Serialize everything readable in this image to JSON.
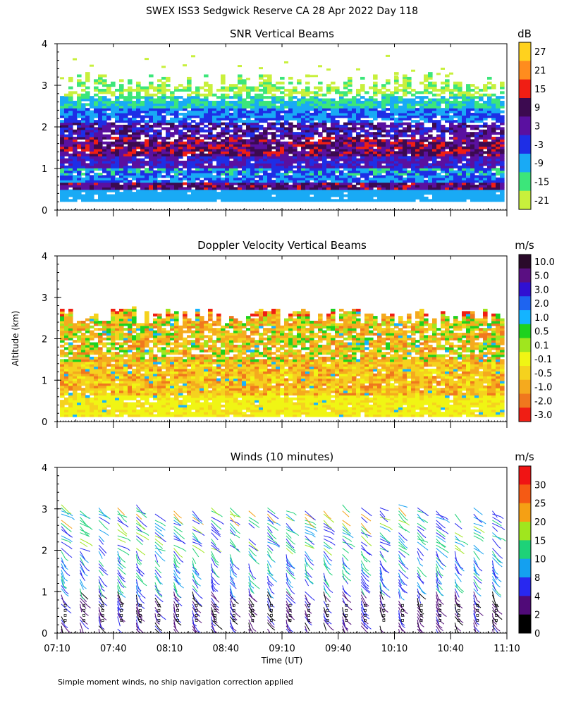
{
  "figure": {
    "title": "SWEX ISS3 Sedgwick Reserve CA  28 Apr 2022 Day 118",
    "shared_ylabel": "Altitude (km)",
    "xlabel": "Time (UT)",
    "footnote": "Simple moment winds, no ship navigation correction applied",
    "x_ticks": [
      "07:10",
      "07:40",
      "08:10",
      "08:40",
      "09:10",
      "09:40",
      "10:10",
      "10:40",
      "11:10"
    ]
  },
  "chart_data": [
    {
      "type": "heatmap",
      "title": "SNR Vertical Beams",
      "ylabel": "Altitude (km)",
      "xlabel": "Time (UT)",
      "xlim": [
        "07:10",
        "11:10"
      ],
      "ylim": [
        0,
        4
      ],
      "y_ticks": [
        0,
        1,
        2,
        3,
        4
      ],
      "colorbar": {
        "unit": "dB",
        "labels": [
          "27",
          "21",
          "15",
          "9",
          "3",
          "-3",
          "-9",
          "-15",
          "-21"
        ],
        "colors": [
          "#ffd21e",
          "#ff8c1e",
          "#f01e14",
          "#3c0a50",
          "#5a10a0",
          "#1e2ee6",
          "#19aaf5",
          "#3ce67a",
          "#c8f03c"
        ]
      },
      "field_description_levels": {
        "0.2-0.5 km": "-9 to -3",
        "0.5-0.7 km": "-3 to 15",
        "0.7-1.3 km": "-9 to 3",
        "1.3-1.7 km": "3 to 15",
        "1.7-2.3 km": "-3 to 9",
        "2.3-3.2 km": "-21 to -9"
      }
    },
    {
      "type": "heatmap",
      "title": "Doppler Velocity Vertical Beams",
      "ylabel": "Altitude (km)",
      "xlabel": "Time (UT)",
      "xlim": [
        "07:10",
        "11:10"
      ],
      "ylim": [
        0,
        4
      ],
      "y_ticks": [
        0,
        1,
        2,
        3,
        4
      ],
      "colorbar": {
        "unit": "m/s",
        "labels": [
          "10.0",
          "5.0",
          "3.0",
          "2.0",
          "1.0",
          "0.5",
          "0.1",
          "-0.1",
          "-0.5",
          "-1.0",
          "-2.0",
          "-3.0"
        ],
        "colors": [
          "#2a0a2a",
          "#5a0f82",
          "#3010d2",
          "#1e64f0",
          "#14b4ff",
          "#1ed21e",
          "#a0e61e",
          "#f0f514",
          "#f5d21e",
          "#f5aa1e",
          "#f0781e",
          "#f01e14"
        ]
      },
      "field_description": "mostly -0.1 to -1.0 m/s from 0.1 to 2.7 km"
    },
    {
      "type": "scatter",
      "subtype": "wind-barbs",
      "title": "Winds (10 minutes)",
      "ylabel": "Altitude (km)",
      "xlabel": "Time (UT)",
      "xlim": [
        "07:10",
        "11:10"
      ],
      "ylim": [
        0,
        4
      ],
      "y_ticks": [
        0,
        1,
        2,
        3,
        4
      ],
      "colorbar": {
        "unit": "m/s",
        "labels": [
          "30",
          "25",
          "20",
          "15",
          "10",
          "8",
          "4",
          "2",
          "0"
        ],
        "colors": [
          "#f01414",
          "#f55a14",
          "#f5a014",
          "#a0e61e",
          "#1ed278",
          "#14a0f0",
          "#2828f0",
          "#500a78",
          "#000000"
        ]
      },
      "profile_times": [
        "07:10",
        "07:20",
        "07:30",
        "07:40",
        "07:50",
        "08:00",
        "08:10",
        "08:20",
        "08:30",
        "08:40",
        "08:50",
        "09:00",
        "09:10",
        "09:20",
        "09:30",
        "09:40",
        "09:50",
        "10:00",
        "10:10",
        "10:20",
        "10:30",
        "10:40",
        "10:50",
        "11:00"
      ]
    }
  ]
}
